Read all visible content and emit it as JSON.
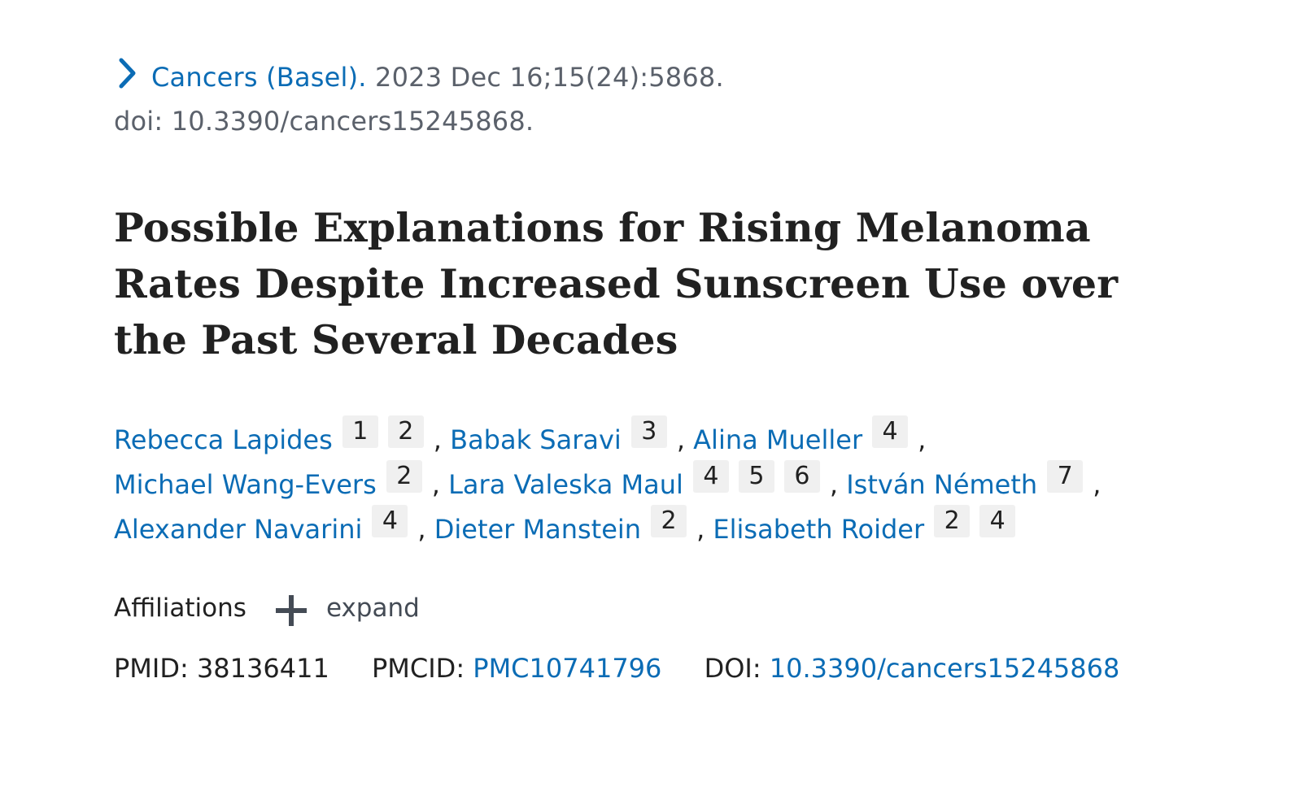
{
  "citation": {
    "journal": "Cancers (Basel).",
    "date_volume": "2023 Dec 16;15(24):5868.",
    "doi_line": "doi: 10.3390/cancers15245868."
  },
  "article": {
    "title": "Possible Explanations for Rising Melanoma Rates Despite Increased Sunscreen Use over the Past Several Decades"
  },
  "authors": [
    {
      "name": "Rebecca Lapides",
      "affs": [
        "1",
        "2"
      ]
    },
    {
      "name": "Babak Saravi",
      "affs": [
        "3"
      ]
    },
    {
      "name": "Alina Mueller",
      "affs": [
        "4"
      ]
    },
    {
      "name": "Michael Wang-Evers",
      "affs": [
        "2"
      ]
    },
    {
      "name": "Lara Valeska Maul",
      "affs": [
        "4",
        "5",
        "6"
      ]
    },
    {
      "name": "István Németh",
      "affs": [
        "7"
      ]
    },
    {
      "name": "Alexander Navarini",
      "affs": [
        "4"
      ]
    },
    {
      "name": "Dieter Manstein",
      "affs": [
        "2"
      ]
    },
    {
      "name": "Elisabeth Roider",
      "affs": [
        "2",
        "4"
      ]
    }
  ],
  "affiliations": {
    "label": "Affiliations",
    "expand_label": "expand"
  },
  "identifiers": {
    "pmid_label": "PMID:",
    "pmid_value": "38136411",
    "pmcid_label": "PMCID:",
    "pmcid_value": "PMC10741796",
    "doi_label": "DOI:",
    "doi_value": "10.3390/cancers15245868"
  },
  "colors": {
    "link": "#0b6cb5",
    "text": "#212121",
    "muted": "#5b616b",
    "badge_bg": "#f0f0f0"
  }
}
